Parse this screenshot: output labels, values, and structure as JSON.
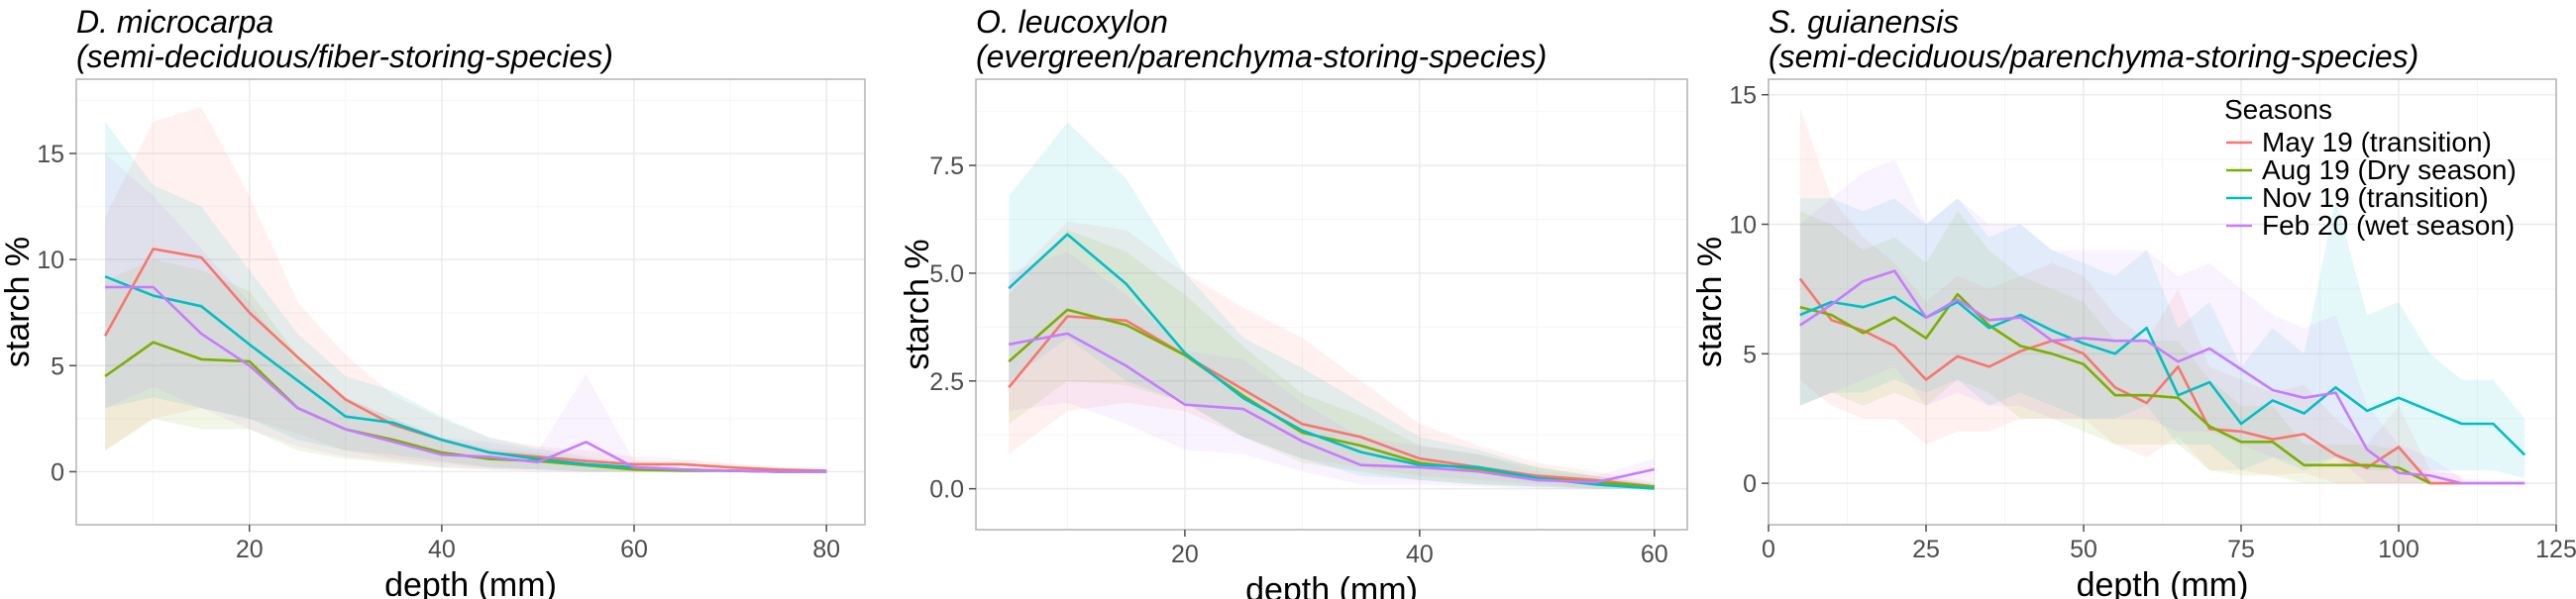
{
  "chart_data": [
    {
      "type": "line",
      "title": "D. microcarpa",
      "subtitle": "(semi-deciduous/fiber-storing-species)",
      "xlabel": "depth (mm)",
      "ylabel": "starch %",
      "xlim": [
        2,
        84
      ],
      "ylim": [
        -2.5,
        18.5
      ],
      "xticks": [
        20,
        40,
        60,
        80
      ],
      "yticks": [
        0,
        5,
        10,
        15
      ],
      "grid": true,
      "legend": "none",
      "x": [
        5,
        10,
        15,
        20,
        25,
        30,
        35,
        40,
        45,
        50,
        55,
        60,
        65,
        70,
        75,
        80
      ],
      "series": [
        {
          "name": "May 19 (transition)",
          "color": "#F8766D",
          "values": [
            6.4,
            10.5,
            10.1,
            7.5,
            5.4,
            3.4,
            2.2,
            1.5,
            0.9,
            0.7,
            0.5,
            0.35,
            0.35,
            0.2,
            0.1,
            0.05
          ],
          "lower": [
            1.0,
            2.5,
            3.0,
            2.5,
            1.8,
            1.0,
            0.6,
            0.4,
            0.2,
            0.1,
            0.0,
            0.0,
            0.0,
            0.0,
            0.0,
            0.0
          ],
          "upper": [
            12.0,
            16.5,
            17.2,
            13.0,
            8.0,
            5.5,
            3.6,
            2.5,
            1.6,
            1.2,
            1.0,
            0.7,
            0.6,
            0.4,
            0.2,
            0.1
          ]
        },
        {
          "name": "Aug 19 (Dry season)",
          "color": "#7CAE00",
          "values": [
            4.5,
            6.1,
            5.3,
            5.2,
            3.0,
            2.0,
            1.5,
            0.9,
            0.6,
            0.5,
            0.3,
            0.1,
            0.05,
            0.05,
            0.0,
            0.0
          ],
          "lower": [
            1.0,
            2.5,
            2.0,
            2.0,
            1.0,
            0.6,
            0.4,
            0.2,
            0.1,
            0.1,
            0.0,
            0.0,
            0.0,
            0.0,
            0.0,
            0.0
          ],
          "upper": [
            9.0,
            10.0,
            9.5,
            8.5,
            5.5,
            3.5,
            2.5,
            1.6,
            1.1,
            0.9,
            0.6,
            0.3,
            0.15,
            0.1,
            0.05,
            0.05
          ]
        },
        {
          "name": "Nov 19 (transition)",
          "color": "#00BFC4",
          "values": [
            9.2,
            8.3,
            7.8,
            6.0,
            4.3,
            2.6,
            2.3,
            1.5,
            0.9,
            0.6,
            0.35,
            0.2,
            0.1,
            0.05,
            0.0,
            0.0
          ],
          "lower": [
            3.0,
            3.5,
            3.0,
            2.5,
            1.5,
            1.0,
            0.8,
            0.5,
            0.2,
            0.1,
            0.0,
            0.0,
            0.0,
            0.0,
            0.0,
            0.0
          ],
          "upper": [
            16.5,
            13.5,
            12.5,
            9.5,
            6.5,
            4.5,
            3.8,
            2.6,
            1.6,
            1.1,
            0.7,
            0.4,
            0.2,
            0.1,
            0.05,
            0.05
          ]
        },
        {
          "name": "Feb 20 (wet season)",
          "color": "#C77CFF",
          "values": [
            8.7,
            8.7,
            6.5,
            5.0,
            3.0,
            2.0,
            1.4,
            0.8,
            0.7,
            0.45,
            1.4,
            0.2,
            0.1,
            0.05,
            0.0,
            0.0
          ],
          "lower": [
            3.0,
            4.0,
            3.0,
            2.0,
            1.2,
            0.7,
            0.5,
            0.2,
            0.1,
            0.0,
            0.0,
            0.0,
            0.0,
            0.0,
            0.0,
            0.0
          ],
          "upper": [
            15.0,
            13.0,
            10.5,
            8.0,
            5.0,
            3.5,
            2.5,
            1.6,
            1.4,
            1.0,
            4.6,
            0.5,
            0.2,
            0.1,
            0.05,
            0.05
          ]
        }
      ]
    },
    {
      "type": "line",
      "title": "O. leucoxylon",
      "subtitle": "(evergreen/parenchyma-storing-species)",
      "xlabel": "depth (mm)",
      "ylabel": "starch %",
      "xlim": [
        2.2,
        62.8
      ],
      "ylim": [
        -0.95,
        9.5
      ],
      "xticks": [
        20,
        40,
        60
      ],
      "yticks": [
        0.0,
        2.5,
        5.0,
        7.5
      ],
      "ytick_labels": [
        "0.0",
        "2.5",
        "5.0",
        "7.5"
      ],
      "grid": true,
      "legend": "none",
      "x": [
        5,
        10,
        15,
        20,
        25,
        30,
        35,
        40,
        45,
        50,
        55,
        60
      ],
      "series": [
        {
          "name": "May 19 (transition)",
          "color": "#F8766D",
          "values": [
            2.35,
            4.0,
            3.9,
            3.1,
            2.3,
            1.5,
            1.2,
            0.7,
            0.5,
            0.3,
            0.2,
            0.05
          ],
          "lower": [
            0.8,
            1.8,
            2.0,
            1.8,
            1.2,
            0.7,
            0.5,
            0.3,
            0.2,
            0.1,
            0.0,
            0.0
          ],
          "upper": [
            4.8,
            6.2,
            6.0,
            5.0,
            4.2,
            3.5,
            2.5,
            1.5,
            1.0,
            0.6,
            0.4,
            0.15
          ]
        },
        {
          "name": "Aug 19 (Dry season)",
          "color": "#7CAE00",
          "values": [
            2.95,
            4.15,
            3.8,
            3.1,
            2.15,
            1.3,
            1.0,
            0.6,
            0.45,
            0.25,
            0.15,
            0.05
          ],
          "lower": [
            1.5,
            2.5,
            2.4,
            2.0,
            1.2,
            0.6,
            0.4,
            0.2,
            0.1,
            0.05,
            0.0,
            0.0
          ],
          "upper": [
            4.5,
            6.0,
            5.5,
            4.5,
            3.3,
            2.2,
            1.7,
            1.0,
            0.8,
            0.5,
            0.3,
            0.1
          ]
        },
        {
          "name": "Nov 19 (transition)",
          "color": "#00BFC4",
          "values": [
            4.65,
            5.9,
            4.75,
            3.15,
            2.1,
            1.35,
            0.85,
            0.55,
            0.5,
            0.25,
            0.1,
            0.0
          ],
          "lower": [
            2.5,
            3.5,
            2.5,
            2.0,
            1.2,
            0.7,
            0.3,
            0.2,
            0.1,
            0.05,
            0.0,
            0.0
          ],
          "upper": [
            6.8,
            8.5,
            7.2,
            5.0,
            3.5,
            2.8,
            2.0,
            1.2,
            0.9,
            0.5,
            0.3,
            0.1
          ]
        },
        {
          "name": "Feb 20 (wet season)",
          "color": "#C77CFF",
          "values": [
            3.35,
            3.6,
            2.85,
            1.95,
            1.85,
            1.1,
            0.55,
            0.5,
            0.4,
            0.2,
            0.15,
            0.45
          ],
          "lower": [
            1.8,
            2.0,
            1.5,
            0.9,
            0.8,
            0.4,
            0.1,
            0.1,
            0.05,
            0.0,
            0.0,
            0.0
          ],
          "upper": [
            5.0,
            5.5,
            4.5,
            3.2,
            3.0,
            2.0,
            1.2,
            1.0,
            0.8,
            0.4,
            0.3,
            0.7
          ]
        }
      ]
    },
    {
      "type": "line",
      "title": "S. guianensis",
      "subtitle": "(semi-deciduous/parenchyma-storing-species)",
      "xlabel": "depth (mm)",
      "ylabel": "starch %",
      "xlim": [
        0,
        125
      ],
      "ylim": [
        -1.6,
        15.6
      ],
      "xticks": [
        0,
        25,
        50,
        75,
        100,
        125
      ],
      "yticks": [
        0,
        5,
        10,
        15
      ],
      "grid": true,
      "legend": "top-right",
      "legend_title": "Seasons",
      "x": [
        5,
        10,
        15,
        20,
        25,
        30,
        35,
        40,
        45,
        50,
        55,
        60,
        65,
        70,
        75,
        80,
        85,
        90,
        95,
        100,
        105,
        110,
        115,
        120
      ],
      "series": [
        {
          "name": "May 19 (transition)",
          "color": "#F8766D",
          "values": [
            7.9,
            6.3,
            5.9,
            5.3,
            4.0,
            4.9,
            4.5,
            5.1,
            5.5,
            5.0,
            3.7,
            3.1,
            4.5,
            2.1,
            2.0,
            1.7,
            1.9,
            1.1,
            0.6,
            1.4,
            0.0,
            0.0,
            null,
            null
          ],
          "lower": [
            4.0,
            3.0,
            2.5,
            2.5,
            1.5,
            2.0,
            2.0,
            2.5,
            2.5,
            2.5,
            1.5,
            1.0,
            1.8,
            0.5,
            0.5,
            0.3,
            0.4,
            0.0,
            0.0,
            0.0,
            0.0,
            0.0,
            null,
            null
          ],
          "upper": [
            14.5,
            11.0,
            9.5,
            8.5,
            7.0,
            8.0,
            7.5,
            8.0,
            8.5,
            8.0,
            6.5,
            5.5,
            7.5,
            4.5,
            4.0,
            3.5,
            3.8,
            2.5,
            1.5,
            3.0,
            0.5,
            0.3,
            null,
            null
          ]
        },
        {
          "name": "Aug 19 (Dry season)",
          "color": "#7CAE00",
          "values": [
            6.8,
            6.5,
            5.8,
            6.4,
            5.6,
            7.3,
            6.1,
            5.3,
            5.0,
            4.6,
            3.4,
            3.4,
            3.3,
            2.2,
            1.6,
            1.6,
            0.7,
            0.7,
            0.7,
            0.6,
            0.0,
            null,
            null,
            null
          ],
          "lower": [
            3.0,
            3.5,
            3.0,
            3.5,
            3.0,
            4.0,
            3.5,
            2.5,
            2.5,
            2.0,
            1.5,
            1.5,
            1.5,
            0.5,
            0.3,
            0.3,
            0.0,
            0.0,
            0.0,
            0.0,
            0.0,
            null,
            null,
            null
          ],
          "upper": [
            10.5,
            10.0,
            9.0,
            9.5,
            8.5,
            10.5,
            9.0,
            8.0,
            7.5,
            7.0,
            5.5,
            5.5,
            5.5,
            4.0,
            3.0,
            3.0,
            1.5,
            1.5,
            1.5,
            1.3,
            0.3,
            null,
            null,
            null
          ]
        },
        {
          "name": "Nov 19 (transition)",
          "color": "#00BFC4",
          "values": [
            6.5,
            7.0,
            6.8,
            7.2,
            6.4,
            7.0,
            6.0,
            6.5,
            5.9,
            5.4,
            5.0,
            6.0,
            3.4,
            3.9,
            2.3,
            3.2,
            2.7,
            3.7,
            2.8,
            3.3,
            2.8,
            2.3,
            2.3,
            1.1
          ],
          "lower": [
            3.0,
            3.5,
            3.5,
            4.0,
            3.5,
            4.0,
            3.0,
            3.5,
            3.0,
            2.5,
            2.5,
            3.0,
            1.5,
            1.5,
            0.5,
            1.0,
            0.5,
            1.0,
            0.5,
            0.5,
            0.5,
            0.5,
            0.5,
            0.2
          ],
          "upper": [
            11.0,
            11.0,
            10.5,
            11.0,
            10.0,
            11.0,
            9.5,
            10.0,
            9.0,
            8.5,
            8.0,
            9.0,
            6.0,
            7.0,
            4.5,
            6.0,
            5.0,
            11.0,
            6.5,
            7.0,
            5.0,
            4.0,
            4.0,
            2.5
          ]
        },
        {
          "name": "Feb 20 (wet season)",
          "color": "#C77CFF",
          "values": [
            6.1,
            6.9,
            7.8,
            8.2,
            6.4,
            7.1,
            6.3,
            6.4,
            5.5,
            5.6,
            5.5,
            5.5,
            4.7,
            5.2,
            4.4,
            3.6,
            3.3,
            3.5,
            1.3,
            0.4,
            0.3,
            0.0,
            0.0,
            0.0
          ],
          "lower": [
            3.0,
            3.5,
            4.0,
            4.5,
            3.0,
            3.5,
            3.0,
            3.0,
            2.5,
            2.5,
            2.5,
            2.5,
            2.0,
            2.0,
            1.5,
            1.0,
            0.8,
            1.0,
            0.0,
            0.0,
            0.0,
            0.0,
            0.0,
            0.0
          ],
          "upper": [
            10.0,
            11.0,
            12.0,
            12.5,
            10.0,
            11.0,
            10.0,
            10.0,
            9.0,
            9.0,
            9.0,
            9.0,
            8.0,
            8.5,
            7.5,
            6.5,
            6.0,
            6.5,
            3.0,
            1.5,
            1.0,
            0.2,
            0.1,
            0.1
          ]
        }
      ]
    }
  ]
}
